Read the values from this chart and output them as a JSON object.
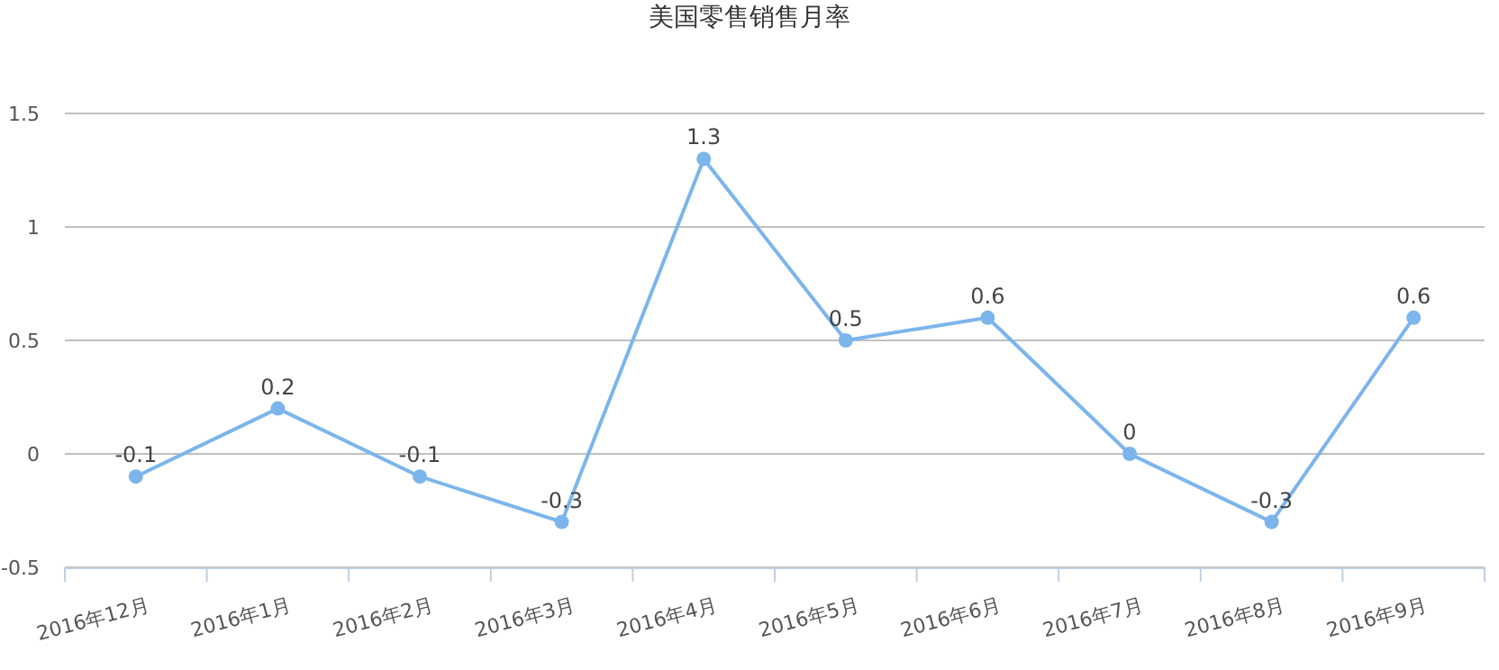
{
  "chart_data": {
    "type": "line",
    "title": "美国零售销售月率",
    "categories": [
      "2016年12月",
      "2016年1月",
      "2016年2月",
      "2016年3月",
      "2016年4月",
      "2016年5月",
      "2016年6月",
      "2016年7月",
      "2016年8月",
      "2016年9月"
    ],
    "values": [
      -0.1,
      0.2,
      -0.1,
      -0.3,
      1.3,
      0.5,
      0.6,
      0,
      -0.3,
      0.6
    ],
    "color": "#7cb5ec",
    "ylim": [
      -0.5,
      1.5
    ],
    "yticks": [
      -0.5,
      0,
      0.5,
      1,
      1.5
    ],
    "grid": "y",
    "marker": "circle",
    "data_labels": true
  }
}
